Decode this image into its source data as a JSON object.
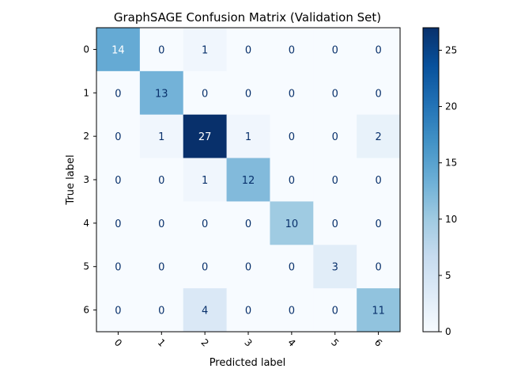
{
  "chart_data": {
    "type": "heatmap",
    "title": "GraphSAGE Confusion Matrix (Validation Set)",
    "xlabel": "Predicted label",
    "ylabel": "True label",
    "x_categories": [
      "0",
      "1",
      "2",
      "3",
      "4",
      "5",
      "6"
    ],
    "y_categories": [
      "0",
      "1",
      "2",
      "3",
      "4",
      "5",
      "6"
    ],
    "values": [
      [
        14,
        0,
        1,
        0,
        0,
        0,
        0
      ],
      [
        0,
        13,
        0,
        0,
        0,
        0,
        0
      ],
      [
        0,
        1,
        27,
        1,
        0,
        0,
        2
      ],
      [
        0,
        0,
        1,
        12,
        0,
        0,
        0
      ],
      [
        0,
        0,
        0,
        0,
        10,
        0,
        0
      ],
      [
        0,
        0,
        0,
        0,
        0,
        3,
        0
      ],
      [
        0,
        0,
        4,
        0,
        0,
        0,
        11
      ]
    ],
    "colormap": "Blues",
    "colorbar": {
      "range": [
        0,
        27
      ],
      "ticks": [
        0,
        5,
        10,
        15,
        20,
        25
      ]
    },
    "x_tick_rotation": 45
  }
}
